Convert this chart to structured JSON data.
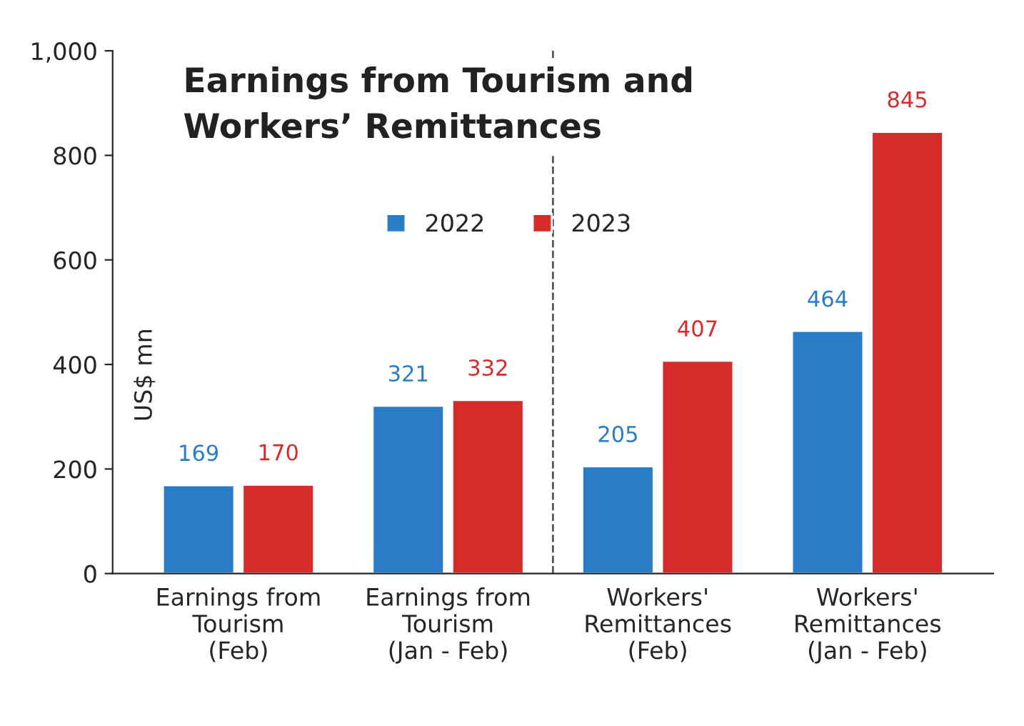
{
  "chart_data": {
    "type": "bar",
    "title": "Earnings from Tourism and\nWorkers’ Remittances",
    "ylabel": "US$ mn",
    "categories": [
      "Earnings from\nTourism\n(Feb)",
      "Earnings from\nTourism\n(Jan - Feb)",
      "Workers'\nRemittances\n(Feb)",
      "Workers'\nRemittances\n(Jan - Feb)"
    ],
    "series": [
      {
        "name": "2022",
        "color": "#2a7cc6",
        "values": [
          169,
          321,
          205,
          464
        ]
      },
      {
        "name": "2023",
        "color": "#d42b2b",
        "values": [
          170,
          332,
          407,
          845
        ]
      }
    ],
    "ylim": [
      0,
      1000
    ],
    "yticks": [
      0,
      200,
      400,
      600,
      800,
      {
        "value": 1000,
        "label": "1,000"
      }
    ],
    "data_labels": true,
    "legend": "top",
    "grid": false
  }
}
